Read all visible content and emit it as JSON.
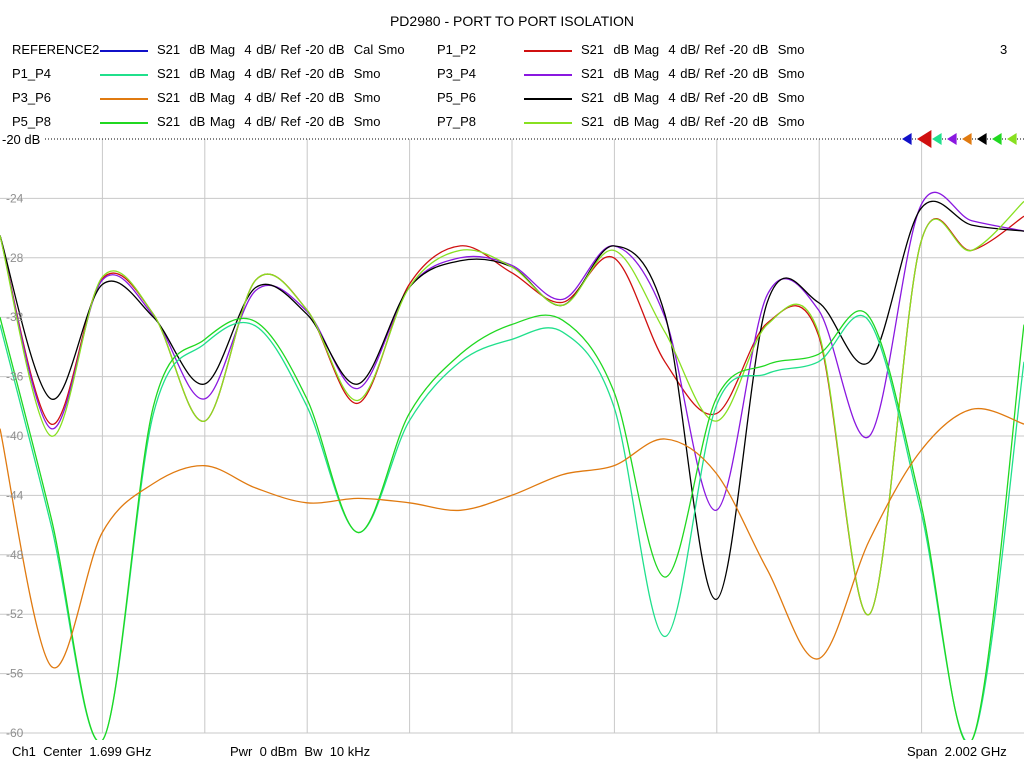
{
  "title": "PD2980 - PORT TO PORT ISOLATION",
  "channel_number": "3",
  "legend": [
    {
      "name": "REFERENCE2",
      "color": "#1010c8",
      "text": "S21  dB Mag  4 dB/ Ref -20 dB  Cal Smo"
    },
    {
      "name": "P1_P2",
      "color": "#d01010",
      "text": "S21  dB Mag  4 dB/ Ref -20 dB  Smo"
    },
    {
      "name": "P1_P4",
      "color": "#20e08c",
      "text": "S21  dB Mag  4 dB/ Ref -20 dB  Smo"
    },
    {
      "name": "P3_P4",
      "color": "#8a18e0",
      "text": "S21  dB Mag  4 dB/ Ref -20 dB  Smo"
    },
    {
      "name": "P3_P6",
      "color": "#e07a10",
      "text": "S21  dB Mag  4 dB/ Ref -20 dB  Smo"
    },
    {
      "name": "P5_P6",
      "color": "#000000",
      "text": "S21  dB Mag  4 dB/ Ref -20 dB  Smo"
    },
    {
      "name": "P5_P8",
      "color": "#20d820",
      "text": "S21  dB Mag  4 dB/ Ref -20 dB  Smo"
    },
    {
      "name": "P7_P8",
      "color": "#88e020",
      "text": "S21  dB Mag  4 dB/ Ref -20 dB  Smo"
    }
  ],
  "footer": {
    "channel": "Ch1  Center  1.699 GHz",
    "power": "Pwr  0 dBm  Bw  10 kHz",
    "span": "Span  2.002 GHz"
  },
  "chart_data": {
    "type": "line",
    "title": "PD2980 - PORT TO PORT ISOLATION",
    "x_label": "",
    "y_label": "",
    "x_range_ghz": [
      0.698,
      2.7
    ],
    "ylim": [
      -60,
      -20
    ],
    "ref_level_label": "-20 dB",
    "y_ticks": [
      -24,
      -28,
      -32,
      -36,
      -40,
      -44,
      -48,
      -52,
      -56,
      -60
    ],
    "grid": true,
    "legend_position": "top",
    "x": [
      0.698,
      0.798,
      0.898,
      0.998,
      1.098,
      1.198,
      1.298,
      1.398,
      1.498,
      1.598,
      1.698,
      1.798,
      1.898,
      1.998,
      2.098,
      2.198,
      2.298,
      2.398,
      2.498,
      2.598,
      2.7
    ],
    "series": [
      {
        "name": "P1_P2",
        "color": "#d01010",
        "values": [
          -26.5,
          -39.2,
          -29.4,
          -31.8,
          -39.0,
          -29.5,
          -31.5,
          -37.8,
          -29.8,
          -27.2,
          -29.0,
          -31.0,
          -28.0,
          -35.0,
          -38.5,
          -32.4,
          -33.2,
          -52.0,
          -27.0,
          -27.5,
          -25.2
        ]
      },
      {
        "name": "P3_P4",
        "color": "#8a18e0",
        "values": [
          -26.5,
          -39.5,
          -29.5,
          -31.9,
          -37.5,
          -30.2,
          -31.6,
          -36.8,
          -30.0,
          -28.0,
          -28.5,
          -30.8,
          -27.2,
          -32.0,
          -45.0,
          -30.5,
          -31.5,
          -40.0,
          -24.5,
          -25.5,
          -26.2
        ]
      },
      {
        "name": "P5_P6",
        "color": "#000000",
        "values": [
          -26.5,
          -37.5,
          -29.8,
          -32.0,
          -36.5,
          -30.0,
          -31.8,
          -36.5,
          -30.0,
          -28.2,
          -28.6,
          -31.2,
          -27.2,
          -31.8,
          -51.0,
          -31.0,
          -31.0,
          -35.0,
          -24.7,
          -25.8,
          -26.2
        ]
      },
      {
        "name": "P7_P8",
        "color": "#88e020",
        "values": [
          -26.5,
          -40.0,
          -29.3,
          -31.8,
          -39.0,
          -29.5,
          -31.5,
          -37.6,
          -30.0,
          -27.5,
          -28.6,
          -31.2,
          -27.5,
          -33.0,
          -39.0,
          -32.5,
          -33.0,
          -52.0,
          -27.0,
          -27.5,
          -24.2
        ]
      },
      {
        "name": "P1_P4",
        "color": "#20e08c",
        "values": [
          -32.5,
          -46.0,
          -60.5,
          -38.5,
          -33.8,
          -32.6,
          -38.0,
          -46.5,
          -39.0,
          -35.0,
          -33.5,
          -33.0,
          -38.0,
          -53.5,
          -38.0,
          -35.8,
          -35.0,
          -32.3,
          -45.0,
          -60.5,
          -35.0
        ]
      },
      {
        "name": "P5_P8",
        "color": "#20d820",
        "values": [
          -32.0,
          -45.5,
          -60.5,
          -38.0,
          -33.5,
          -32.3,
          -37.5,
          -46.5,
          -38.5,
          -34.5,
          -32.5,
          -32.2,
          -37.0,
          -49.5,
          -37.5,
          -35.2,
          -34.5,
          -32.0,
          -44.5,
          -60.5,
          -32.5
        ]
      },
      {
        "name": "P3_P6",
        "color": "#e07a10",
        "values": [
          -39.5,
          -55.5,
          -46.5,
          -43.2,
          -42.0,
          -43.5,
          -44.5,
          -44.2,
          -44.5,
          -45.0,
          -44.0,
          -42.6,
          -42.0,
          -40.2,
          -42.5,
          -49.0,
          -55.0,
          -47.0,
          -41.0,
          -38.2,
          -39.2
        ]
      }
    ]
  }
}
